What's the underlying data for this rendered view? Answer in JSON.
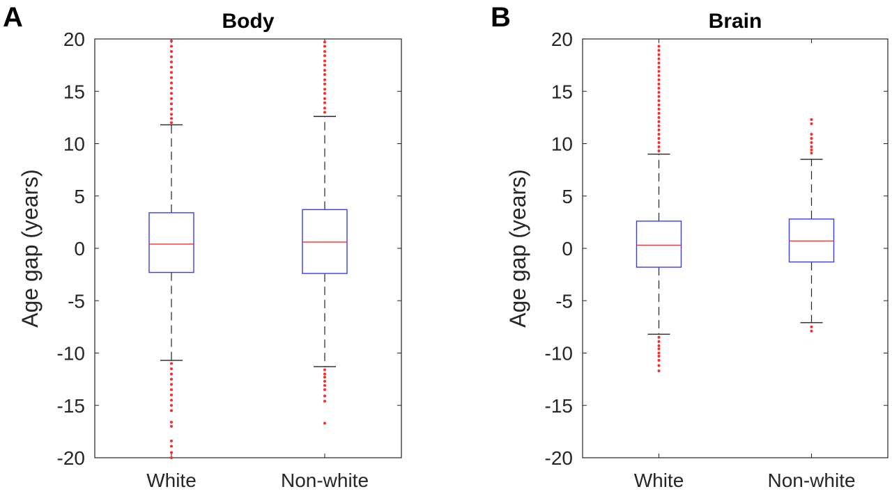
{
  "chart_data": [
    {
      "type": "box",
      "panel_letter": "A",
      "title": "Body",
      "ylabel": "Age gap (years)",
      "ylim": [
        -20,
        20
      ],
      "yticks": [
        20,
        15,
        10,
        5,
        0,
        -5,
        -10,
        -15,
        -20
      ],
      "categories": [
        "White",
        "Non-white"
      ],
      "boxes": [
        {
          "category": "White",
          "q1": -2.3,
          "median": 0.4,
          "q3": 3.4,
          "whisker_low": -10.7,
          "whisker_high": 11.8,
          "outliers_high": [
            12.0,
            12.4,
            12.8,
            13.3,
            13.8,
            14.3,
            14.8,
            15.3,
            15.8,
            16.3,
            16.8,
            17.3,
            17.8,
            18.3,
            18.8,
            19.3,
            19.8
          ],
          "outliers_low": [
            -11.0,
            -11.5,
            -12.0,
            -12.5,
            -13.0,
            -13.5,
            -14.0,
            -14.5,
            -15.0,
            -15.5,
            -16.6,
            -17.0,
            -18.4,
            -18.9,
            -19.5,
            -20.0
          ]
        },
        {
          "category": "Non-white",
          "q1": -2.4,
          "median": 0.6,
          "q3": 3.7,
          "whisker_low": -11.3,
          "whisker_high": 12.6,
          "outliers_high": [
            13.0,
            13.4,
            13.9,
            14.3,
            14.8,
            15.2,
            15.7,
            16.1,
            16.6,
            17.0,
            17.5,
            17.9,
            18.4,
            18.8,
            19.3,
            19.7
          ],
          "outliers_low": [
            -11.6,
            -12.0,
            -12.3,
            -12.7,
            -13.1,
            -13.5,
            -14.1,
            -14.6,
            -16.7
          ]
        }
      ]
    },
    {
      "type": "box",
      "panel_letter": "B",
      "title": "Brain",
      "ylabel": "Age gap (years)",
      "ylim": [
        -20,
        20
      ],
      "yticks": [
        20,
        15,
        10,
        5,
        0,
        -5,
        -10,
        -15,
        -20
      ],
      "categories": [
        "White",
        "Non-white"
      ],
      "boxes": [
        {
          "category": "White",
          "q1": -1.8,
          "median": 0.3,
          "q3": 2.6,
          "whisker_low": -8.2,
          "whisker_high": 9.0,
          "outliers_high": [
            9.3,
            9.7,
            10.1,
            10.5,
            10.9,
            11.3,
            11.7,
            12.1,
            12.5,
            12.9,
            13.3,
            13.7,
            14.1,
            14.5,
            14.9,
            15.3,
            15.7,
            16.1,
            16.5,
            16.9,
            17.3,
            17.7,
            18.1,
            18.5,
            18.9,
            19.3
          ],
          "outliers_low": [
            -8.5,
            -8.9,
            -9.3,
            -9.6,
            -10.0,
            -10.3,
            -10.7,
            -11.2,
            -11.7
          ]
        },
        {
          "category": "Non-white",
          "q1": -1.3,
          "median": 0.7,
          "q3": 2.8,
          "whisker_low": -7.1,
          "whisker_high": 8.5,
          "outliers_high": [
            9.1,
            9.4,
            9.7,
            10.1,
            10.5,
            10.9,
            11.9,
            12.3
          ],
          "outliers_low": [
            -7.5,
            -7.9
          ]
        }
      ]
    }
  ]
}
